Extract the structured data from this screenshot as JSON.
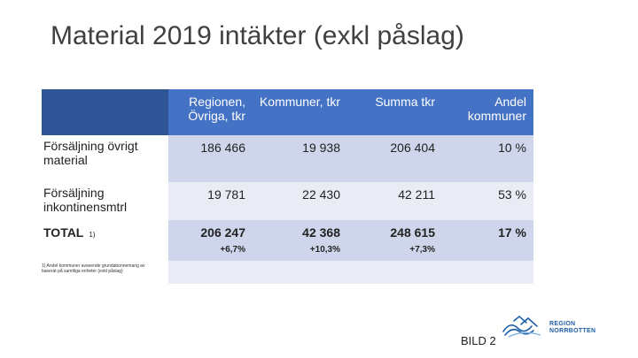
{
  "slide": {
    "title": "Material 2019 intäkter (exkl påslag)",
    "footer_label": "BILD 2"
  },
  "table": {
    "headers": [
      "",
      "Regionen, Övriga, tkr",
      "Kommuner, tkr",
      "Summa tkr",
      "Andel kommuner"
    ],
    "rows": [
      {
        "label": "Försäljning övrigt material",
        "values": [
          "186 466",
          "19 938",
          "206 404",
          "10 %"
        ]
      },
      {
        "label": "Försäljning inkontinensmtrl",
        "values": [
          "19 781",
          "22 430",
          "42 211",
          "53 %"
        ]
      },
      {
        "label": "TOTAL",
        "label_suffix": "1)",
        "values": [
          "206 247",
          "42 368",
          "248 615",
          "17 %"
        ]
      }
    ],
    "changes": [
      "+6,7%",
      "+10,3%",
      "+7,3%"
    ]
  },
  "footnote": "1) Andel kommuner avseende grundabonnemang av baserat på samtliga enheter (exkl påslag)",
  "logo": {
    "line1": "REGION",
    "line2": "NORRBOTTEN",
    "color": "#1f5fa8",
    "icon": "region-norrbotten-logo-icon"
  },
  "colors": {
    "header_dark": "#2f5597",
    "header": "#4472c4",
    "row_band": "#cfd5ea",
    "row_light": "#e9ebf5"
  }
}
